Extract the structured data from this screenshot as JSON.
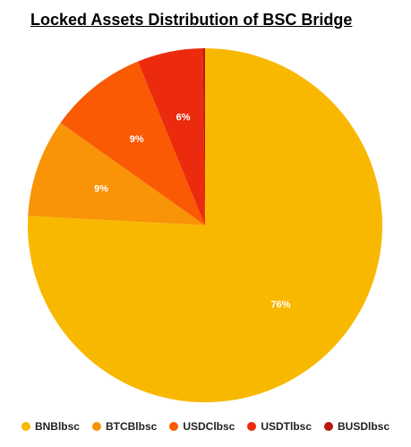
{
  "chart_data": {
    "type": "pie",
    "title": "Locked Assets Distribution of BSC Bridge",
    "legend_position": "bottom",
    "slices": [
      {
        "name": "BNBlbsc",
        "value": 76,
        "label": "76%",
        "color": "#F9B800"
      },
      {
        "name": "BTCBlbsc",
        "value": 9,
        "label": "9%",
        "color": "#F99308"
      },
      {
        "name": "USDClbsc",
        "value": 9,
        "label": "9%",
        "color": "#FA5A03"
      },
      {
        "name": "USDTlbsc",
        "value": 6,
        "label": "6%",
        "color": "#EC2A0D"
      },
      {
        "name": "BUSDlbsc",
        "value": 0.2,
        "label": "",
        "color": "#B7170E"
      }
    ]
  }
}
